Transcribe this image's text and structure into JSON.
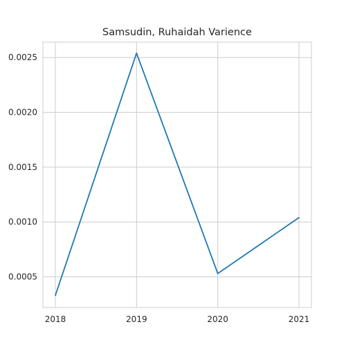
{
  "chart_data": {
    "type": "line",
    "title": "Samsudin, Ruhaidah Varience",
    "xlabel": "",
    "ylabel": "",
    "x": [
      "2018",
      "2019",
      "2020",
      "2021"
    ],
    "series": [
      {
        "values": [
          0.00033,
          0.00254,
          0.00053,
          0.00104
        ],
        "color": "#1f77b4"
      }
    ],
    "yticks": [
      "0.0005",
      "0.0010",
      "0.0015",
      "0.0020",
      "0.0025"
    ],
    "ytick_values": [
      0.0005,
      0.001,
      0.0015,
      0.002,
      0.0025
    ],
    "ylim": [
      0.00022,
      0.00264
    ],
    "grid": true,
    "legend": "none"
  }
}
